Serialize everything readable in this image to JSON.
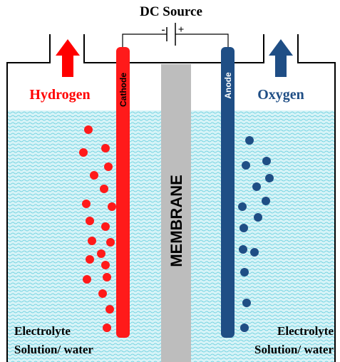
{
  "title": "DC Source",
  "terminals": {
    "negative": "-",
    "positive": "+"
  },
  "gases": {
    "left": "Hydrogen",
    "right": "Oxygen"
  },
  "electrodes": {
    "cathode": "Cathode",
    "anode": "Anode"
  },
  "membrane": "MEMBRANE",
  "electrolyte": {
    "left": [
      "Electrolyte",
      "Solution/ water"
    ],
    "right": [
      "Electrolyte",
      "Solution/ water"
    ]
  }
}
